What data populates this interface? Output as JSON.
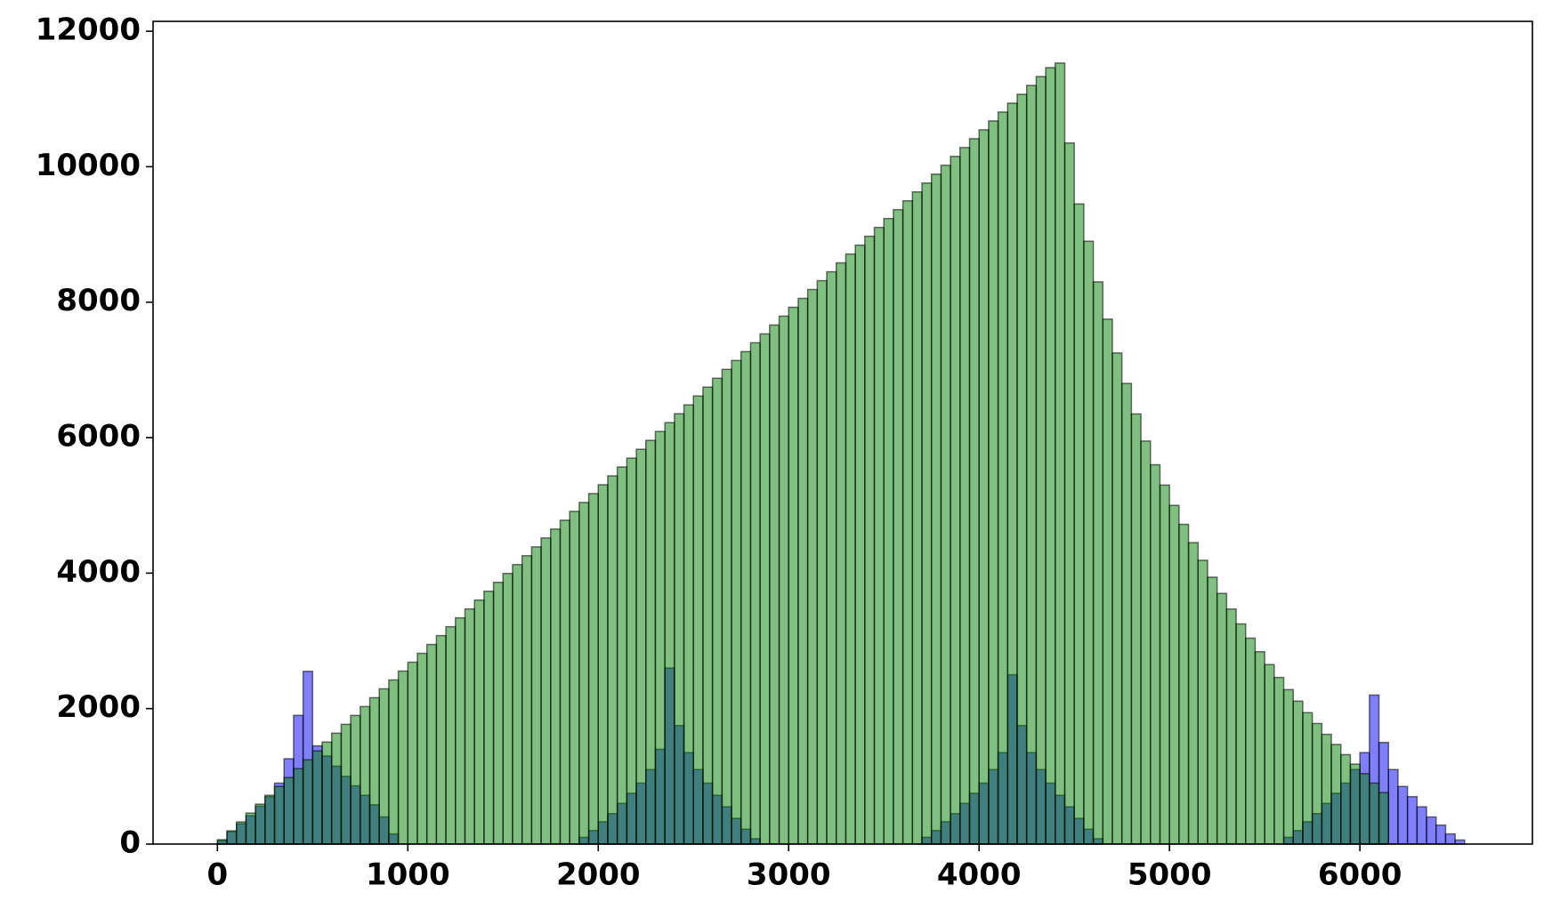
{
  "chart_data": {
    "type": "histogram",
    "bins": [
      0,
      50,
      100,
      150,
      200,
      250,
      300,
      350,
      400,
      450,
      500,
      550,
      600,
      650,
      700,
      750,
      800,
      850,
      900,
      950,
      1000,
      1050,
      1100,
      1150,
      1200,
      1250,
      1300,
      1350,
      1400,
      1450,
      1500,
      1550,
      1600,
      1650,
      1700,
      1750,
      1800,
      1850,
      1900,
      1950,
      2000,
      2050,
      2100,
      2150,
      2200,
      2250,
      2300,
      2350,
      2400,
      2450,
      2500,
      2550,
      2600,
      2650,
      2700,
      2750,
      2800,
      2850,
      2900,
      2950,
      3000,
      3050,
      3100,
      3150,
      3200,
      3250,
      3300,
      3350,
      3400,
      3450,
      3500,
      3550,
      3600,
      3650,
      3700,
      3750,
      3800,
      3850,
      3900,
      3950,
      4000,
      4050,
      4100,
      4150,
      4200,
      4250,
      4300,
      4350,
      4400,
      4450,
      4500,
      4550,
      4600,
      4650,
      4700,
      4750,
      4800,
      4850,
      4900,
      4950,
      5000,
      5050,
      5100,
      5150,
      5200,
      5250,
      5300,
      5350,
      5400,
      5450,
      5500,
      5550,
      5600,
      5650,
      5700,
      5750,
      5800,
      5850,
      5900,
      5950,
      6000,
      6050,
      6100,
      6150,
      6200,
      6250,
      6300,
      6350,
      6400,
      6450,
      6500,
      6550,
      6600
    ],
    "series": [
      {
        "color": "#0000ff",
        "alpha": 0.5,
        "values": [
          50,
          180,
          300,
          420,
          560,
          700,
          900,
          1260,
          1900,
          2550,
          1450,
          1300,
          1150,
          1000,
          860,
          720,
          580,
          400,
          150,
          0,
          0,
          0,
          0,
          0,
          0,
          0,
          0,
          0,
          0,
          0,
          0,
          0,
          0,
          0,
          0,
          0,
          0,
          0,
          100,
          200,
          330,
          450,
          600,
          750,
          900,
          1100,
          1400,
          2600,
          1750,
          1350,
          1100,
          900,
          720,
          550,
          380,
          220,
          80,
          0,
          0,
          0,
          0,
          0,
          0,
          0,
          0,
          0,
          0,
          0,
          0,
          0,
          0,
          0,
          0,
          0,
          100,
          200,
          330,
          450,
          600,
          750,
          900,
          1100,
          1350,
          2500,
          1750,
          1350,
          1100,
          900,
          720,
          550,
          380,
          220,
          80,
          0,
          0,
          0,
          0,
          0,
          0,
          0,
          0,
          0,
          0,
          0,
          0,
          0,
          0,
          0,
          0,
          0,
          0,
          0,
          100,
          200,
          330,
          450,
          600,
          750,
          900,
          1100,
          1350,
          2200,
          1500,
          1100,
          850,
          700,
          550,
          400,
          280,
          150,
          60
        ]
      },
      {
        "color": "#008000",
        "alpha": 0.5,
        "values": [
          65,
          196,
          327,
          458,
          589,
          720,
          851,
          982,
          1113,
          1244,
          1375,
          1506,
          1637,
          1768,
          1899,
          2030,
          2161,
          2292,
          2423,
          2554,
          2685,
          2816,
          2947,
          3078,
          3209,
          3340,
          3471,
          3602,
          3733,
          3864,
          3995,
          4126,
          4257,
          4388,
          4519,
          4650,
          4781,
          4912,
          5043,
          5174,
          5305,
          5436,
          5567,
          5698,
          5829,
          5960,
          6091,
          6222,
          6353,
          6484,
          6615,
          6746,
          6877,
          7008,
          7139,
          7270,
          7401,
          7532,
          7663,
          7794,
          7925,
          8056,
          8187,
          8318,
          8449,
          8580,
          8711,
          8842,
          8973,
          9104,
          9235,
          9366,
          9497,
          9628,
          9759,
          9890,
          10021,
          10152,
          10283,
          10414,
          10545,
          10676,
          10807,
          10938,
          11069,
          11200,
          11331,
          11462,
          11530,
          10350,
          9450,
          8900,
          8300,
          7750,
          7250,
          6800,
          6350,
          5950,
          5600,
          5300,
          5000,
          4720,
          4450,
          4190,
          3940,
          3700,
          3470,
          3250,
          3040,
          2840,
          2650,
          2460,
          2280,
          2110,
          1940,
          1780,
          1620,
          1470,
          1320,
          1180,
          1040,
          900,
          760,
          0,
          0,
          0,
          0,
          0,
          0,
          0,
          0,
          0
        ]
      }
    ],
    "xlim": [
      -338,
      6906
    ],
    "ylim": [
      0,
      12146
    ],
    "xticks": [
      0,
      1000,
      2000,
      3000,
      4000,
      5000,
      6000
    ],
    "yticks": [
      0,
      2000,
      4000,
      6000,
      8000,
      10000,
      12000
    ]
  }
}
